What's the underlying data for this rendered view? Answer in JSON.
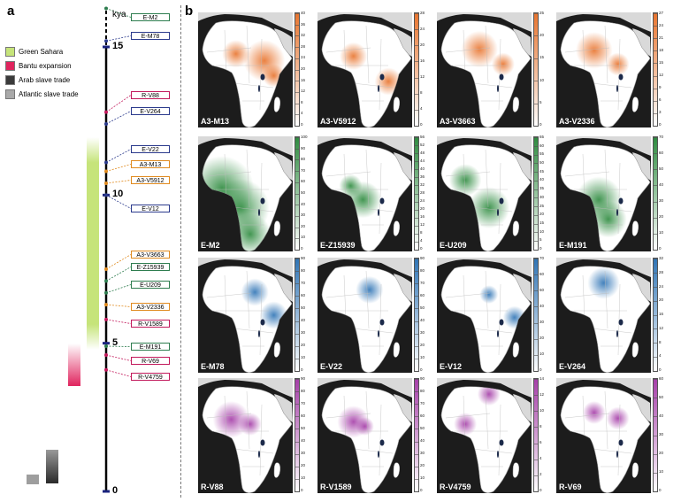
{
  "panel_a": {
    "letter": "a",
    "kya_label": "kya",
    "legend": [
      {
        "label": "Green Sahara",
        "color": "#c6e47a"
      },
      {
        "label": "Bantu expansion",
        "color": "#e0245e"
      },
      {
        "label": "Arab slave trade",
        "color": "#3a3a3a"
      },
      {
        "label": "Atlantic slave trade",
        "color": "#a9a9a9"
      }
    ],
    "ticks": [
      "15",
      "10",
      "5",
      "0"
    ],
    "markers": [
      {
        "label": "E-M2",
        "category": "green",
        "kya": 16.3
      },
      {
        "label": "E-M78",
        "category": "blue",
        "kya": 15.2
      },
      {
        "label": "R-V88",
        "category": "red",
        "kya": 12.8
      },
      {
        "label": "E-V264",
        "category": "blue",
        "kya": 12.4
      },
      {
        "label": "E-V22",
        "category": "blue",
        "kya": 11.1
      },
      {
        "label": "A3-M13",
        "category": "orange",
        "kya": 10.8
      },
      {
        "label": "A3-V5912",
        "category": "orange",
        "kya": 10.4
      },
      {
        "label": "E-V12",
        "category": "blue",
        "kya": 10.0
      },
      {
        "label": "A3-V3663",
        "category": "orange",
        "kya": 7.5
      },
      {
        "label": "E-Z15939",
        "category": "green",
        "kya": 7.1
      },
      {
        "label": "E-U209",
        "category": "green",
        "kya": 6.7
      },
      {
        "label": "A3-V2336",
        "category": "orange",
        "kya": 6.3
      },
      {
        "label": "R-V1589",
        "category": "red",
        "kya": 5.8
      },
      {
        "label": "E-M191",
        "category": "green",
        "kya": 4.9
      },
      {
        "label": "R-V69",
        "category": "red",
        "kya": 4.6
      },
      {
        "label": "R-V4759",
        "category": "red",
        "kya": 4.1
      }
    ]
  },
  "panel_b": {
    "letter": "b",
    "maps": [
      {
        "label": "A3-M13",
        "color": "#e8742e",
        "scale": [
          "40",
          "36",
          "32",
          "28",
          "24",
          "20",
          "16",
          "12",
          "8",
          "4",
          "0"
        ],
        "hotspots": [
          [
            0.7,
            0.42,
            0.18
          ],
          [
            0.4,
            0.36,
            0.12
          ],
          [
            0.8,
            0.55,
            0.1
          ]
        ]
      },
      {
        "label": "A3-V5912",
        "color": "#e8742e",
        "scale": [
          "28",
          "24",
          "20",
          "16",
          "12",
          "8",
          "4",
          "0"
        ],
        "hotspots": [
          [
            0.38,
            0.38,
            0.12
          ],
          [
            0.75,
            0.6,
            0.12
          ]
        ]
      },
      {
        "label": "A3-V3663",
        "color": "#e8742e",
        "scale": [
          "25",
          "20",
          "15",
          "10",
          "5",
          "0"
        ],
        "hotspots": [
          [
            0.45,
            0.32,
            0.16
          ],
          [
            0.7,
            0.45,
            0.1
          ]
        ]
      },
      {
        "label": "A3-V2336",
        "color": "#e8742e",
        "scale": [
          "27",
          "24",
          "21",
          "18",
          "15",
          "12",
          "9",
          "6",
          "3",
          "0"
        ],
        "hotspots": [
          [
            0.4,
            0.33,
            0.16
          ],
          [
            0.65,
            0.45,
            0.1
          ]
        ]
      },
      {
        "label": "E-M2",
        "color": "#2e8b3f",
        "scale": [
          "100",
          "90",
          "80",
          "70",
          "60",
          "50",
          "40",
          "30",
          "20",
          "10",
          "0"
        ],
        "hotspots": [
          [
            0.25,
            0.45,
            0.28
          ],
          [
            0.45,
            0.62,
            0.25
          ],
          [
            0.55,
            0.85,
            0.18
          ]
        ]
      },
      {
        "label": "E-Z15939",
        "color": "#2e8b3f",
        "scale": [
          "56",
          "52",
          "48",
          "44",
          "40",
          "36",
          "32",
          "28",
          "24",
          "20",
          "16",
          "12",
          "8",
          "4",
          "0"
        ],
        "hotspots": [
          [
            0.35,
            0.43,
            0.1
          ],
          [
            0.48,
            0.55,
            0.16
          ]
        ]
      },
      {
        "label": "E-U209",
        "color": "#2e8b3f",
        "scale": [
          "65",
          "60",
          "55",
          "50",
          "45",
          "40",
          "35",
          "30",
          "25",
          "20",
          "15",
          "10",
          "5",
          "0"
        ],
        "hotspots": [
          [
            0.3,
            0.38,
            0.14
          ],
          [
            0.55,
            0.62,
            0.18
          ]
        ]
      },
      {
        "label": "E-M191",
        "color": "#2e8b3f",
        "scale": [
          "70",
          "60",
          "50",
          "40",
          "30",
          "20",
          "10",
          "0"
        ],
        "hotspots": [
          [
            0.45,
            0.55,
            0.2
          ],
          [
            0.55,
            0.72,
            0.16
          ]
        ]
      },
      {
        "label": "E-M78",
        "color": "#2f74b5",
        "scale": [
          "90",
          "80",
          "70",
          "60",
          "50",
          "40",
          "30",
          "20",
          "10",
          "0"
        ],
        "hotspots": [
          [
            0.8,
            0.5,
            0.12
          ],
          [
            0.6,
            0.3,
            0.12
          ]
        ]
      },
      {
        "label": "E-V22",
        "color": "#2f74b5",
        "scale": [
          "90",
          "80",
          "70",
          "60",
          "50",
          "40",
          "30",
          "20",
          "10",
          "0"
        ],
        "hotspots": [
          [
            0.55,
            0.28,
            0.12
          ]
        ]
      },
      {
        "label": "E-V12",
        "color": "#2f74b5",
        "scale": [
          "70",
          "60",
          "50",
          "40",
          "30",
          "20",
          "10",
          "0"
        ],
        "hotspots": [
          [
            0.82,
            0.52,
            0.1
          ],
          [
            0.55,
            0.32,
            0.08
          ]
        ]
      },
      {
        "label": "E-V264",
        "color": "#2f74b5",
        "scale": [
          "32",
          "28",
          "24",
          "20",
          "16",
          "12",
          "8",
          "4",
          "0"
        ],
        "hotspots": [
          [
            0.5,
            0.22,
            0.14
          ]
        ]
      },
      {
        "label": "R-V88",
        "color": "#a53ea8",
        "scale": [
          "90",
          "80",
          "70",
          "60",
          "50",
          "40",
          "30",
          "20",
          "10",
          "0"
        ],
        "hotspots": [
          [
            0.35,
            0.36,
            0.16
          ],
          [
            0.55,
            0.4,
            0.1
          ]
        ]
      },
      {
        "label": "R-V1589",
        "color": "#a53ea8",
        "scale": [
          "90",
          "80",
          "70",
          "60",
          "50",
          "40",
          "30",
          "20",
          "10",
          "0"
        ],
        "hotspots": [
          [
            0.38,
            0.38,
            0.14
          ],
          [
            0.5,
            0.42,
            0.08
          ]
        ]
      },
      {
        "label": "R-V4759",
        "color": "#a53ea8",
        "scale": [
          "14",
          "12",
          "10",
          "8",
          "6",
          "4",
          "2",
          "0"
        ],
        "hotspots": [
          [
            0.55,
            0.14,
            0.1
          ],
          [
            0.3,
            0.4,
            0.1
          ]
        ]
      },
      {
        "label": "R-V69",
        "color": "#a53ea8",
        "scale": [
          "60",
          "50",
          "40",
          "30",
          "20",
          "10",
          "0"
        ],
        "hotspots": [
          [
            0.65,
            0.35,
            0.1
          ],
          [
            0.4,
            0.3,
            0.1
          ]
        ]
      }
    ]
  }
}
